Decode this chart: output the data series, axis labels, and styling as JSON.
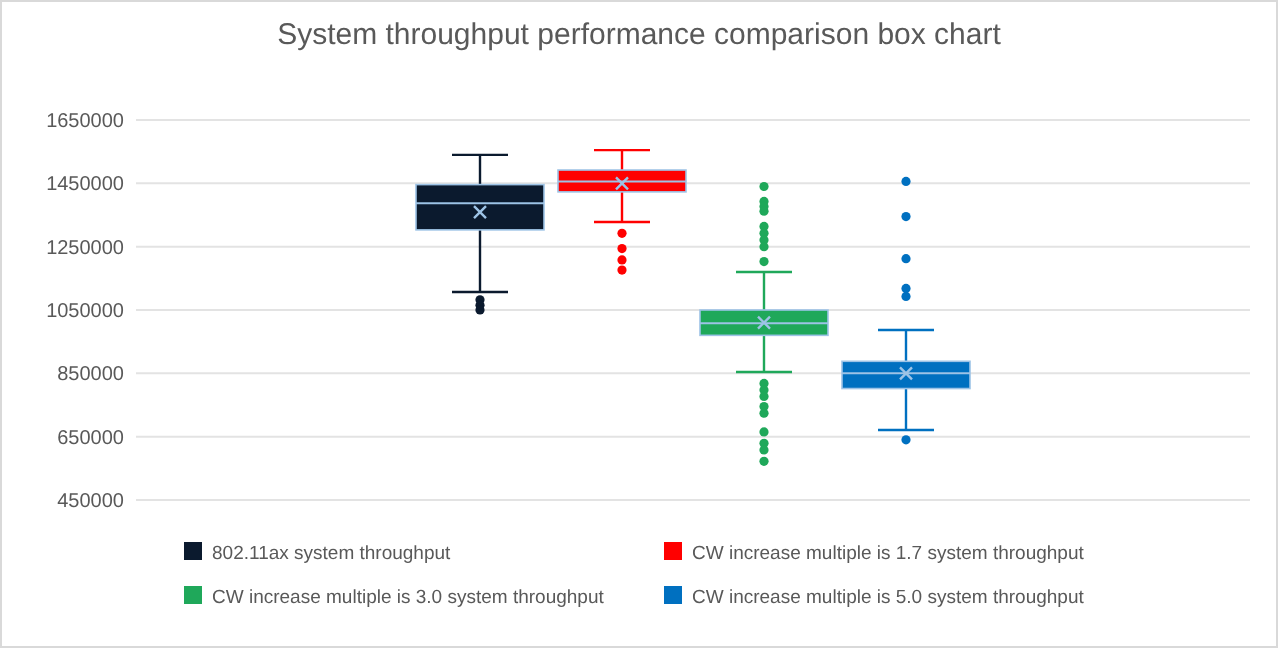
{
  "chart_data": {
    "type": "box",
    "title": "System throughput performance comparison box chart",
    "categories": [
      null
    ],
    "series": [
      {
        "name": "802.11ax system throughput",
        "color": "#0b1a2e",
        "boxes": [
          {
            "low": 1107000,
            "q1": 1303000,
            "median": 1387000,
            "q3": 1446000,
            "high": 1540000,
            "mean": 1359000,
            "outliers": [
              1082000,
              1065000,
              1050000
            ]
          }
        ]
      },
      {
        "name": "CW increase multiple is 1.7 system throughput",
        "color": "#ff0000",
        "boxes": [
          {
            "low": 1328000,
            "q1": 1423000,
            "median": 1456000,
            "q3": 1492000,
            "high": 1555000,
            "mean": 1450000,
            "outliers": [
              1292000,
              1244000,
              1208000,
              1176000
            ]
          }
        ]
      },
      {
        "name": "CW increase multiple is 3.0 system throughput",
        "color": "#1fa85a",
        "boxes": [
          {
            "low": 854000,
            "q1": 970000,
            "median": 1008000,
            "q3": 1050000,
            "high": 1170000,
            "mean": 1010000,
            "outliers": [
              1440000,
              1393000,
              1377000,
              1362000,
              1314000,
              1292000,
              1271000,
              1250000,
              1203000,
              818000,
              797000,
              777000,
              745000,
              724000,
              665000,
              629000,
              608000,
              572000
            ]
          }
        ]
      },
      {
        "name": "CW increase multiple is 5.0 system throughput",
        "color": "#0070c0",
        "boxes": [
          {
            "low": 671000,
            "q1": 802000,
            "median": 850000,
            "q3": 888000,
            "high": 987000,
            "mean": 850000,
            "outliers": [
              1456000,
              1345000,
              1212000,
              1118000,
              1093000,
              640000
            ]
          }
        ]
      }
    ],
    "ylim": [
      450000,
      1650000
    ],
    "yticks": [
      450000,
      650000,
      850000,
      1050000,
      1250000,
      1450000,
      1650000
    ],
    "grid": "y",
    "legend": "bottom"
  }
}
